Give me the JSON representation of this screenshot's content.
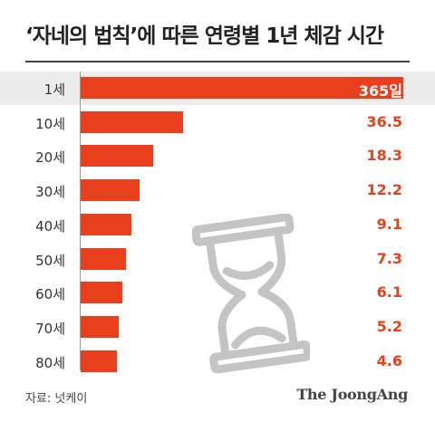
{
  "title": "‘자네의 법칙’에 따른 연령별 1년 체감 시간",
  "source": "자료: 넛케이",
  "logo": "The JoongAng",
  "colors": {
    "bar": "#e8401c",
    "highlight_row": "#ececec",
    "icon": "#bdbdbd"
  },
  "icon": "hourglass-icon",
  "chart_data": {
    "type": "bar",
    "orientation": "horizontal",
    "categories": [
      "1세",
      "10세",
      "20세",
      "30세",
      "40세",
      "50세",
      "60세",
      "70세",
      "80세"
    ],
    "values": [
      365,
      36.5,
      18.3,
      12.2,
      9.1,
      7.3,
      6.1,
      5.2,
      4.6
    ],
    "value_labels": [
      "365일",
      "36.5",
      "18.3",
      "12.2",
      "9.1",
      "7.3",
      "6.1",
      "5.2",
      "4.6"
    ],
    "title": "‘자네의 법칙’에 따른 연령별 1년 체감 시간",
    "xlim": [
      0,
      365
    ]
  }
}
